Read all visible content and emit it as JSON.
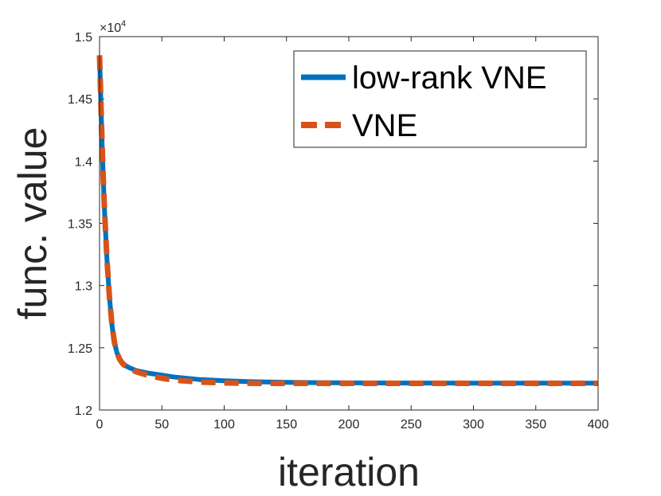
{
  "chart_data": {
    "type": "line",
    "title": "",
    "xlabel": "iteration",
    "ylabel": "func. value",
    "xlim": [
      0,
      400
    ],
    "ylim": [
      1.2,
      1.5
    ],
    "y_scale_label": "×10",
    "y_scale_exponent": "4",
    "x_ticks": [
      0,
      50,
      100,
      150,
      200,
      250,
      300,
      350,
      400
    ],
    "x_tick_labels": [
      "0",
      "50",
      "100",
      "150",
      "200",
      "250",
      "300",
      "350",
      "400"
    ],
    "y_ticks": [
      1.2,
      1.25,
      1.3,
      1.35,
      1.4,
      1.45,
      1.5
    ],
    "y_tick_labels": [
      "1.2",
      "1.25",
      "1.3",
      "1.35",
      "1.4",
      "1.45",
      "1.5"
    ],
    "grid": false,
    "legend_position": "top-right",
    "series": [
      {
        "name": "low-rank VNE",
        "color": "#0072BD",
        "style": "solid",
        "x": [
          0,
          1,
          2,
          3,
          4,
          5,
          6,
          7,
          8,
          10,
          12,
          14,
          16,
          18,
          20,
          25,
          30,
          40,
          50,
          60,
          80,
          100,
          120,
          150,
          200,
          250,
          300,
          350,
          400
        ],
        "y": [
          1.485,
          1.45,
          1.415,
          1.385,
          1.36,
          1.34,
          1.32,
          1.305,
          1.29,
          1.268,
          1.254,
          1.246,
          1.241,
          1.238,
          1.236,
          1.2335,
          1.2315,
          1.2295,
          1.228,
          1.2265,
          1.2245,
          1.2235,
          1.2228,
          1.2222,
          1.2218,
          1.2217,
          1.2216,
          1.2216,
          1.2216
        ]
      },
      {
        "name": "VNE",
        "color": "#D95319",
        "style": "dashed",
        "x": [
          0,
          1,
          2,
          3,
          4,
          5,
          6,
          7,
          8,
          10,
          12,
          14,
          16,
          18,
          20,
          25,
          30,
          40,
          50,
          60,
          80,
          100,
          120,
          150,
          200,
          250,
          300,
          350,
          400
        ],
        "y": [
          1.485,
          1.45,
          1.415,
          1.385,
          1.36,
          1.34,
          1.32,
          1.305,
          1.29,
          1.268,
          1.254,
          1.246,
          1.241,
          1.238,
          1.236,
          1.233,
          1.2305,
          1.2275,
          1.2255,
          1.224,
          1.2225,
          1.2218,
          1.2215,
          1.2214,
          1.2214,
          1.2214,
          1.2214,
          1.2214,
          1.2214
        ]
      }
    ]
  }
}
